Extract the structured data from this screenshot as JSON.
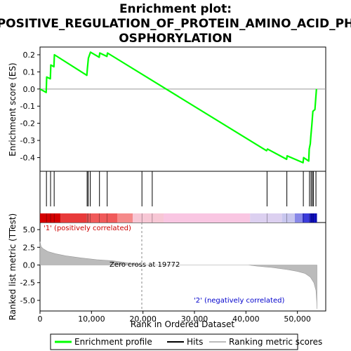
{
  "chart_data": {
    "type": "line",
    "title_lines": [
      "Enrichment plot:",
      "POSITIVE_REGULATION_OF_PROTEIN_AMINO_ACID_PH",
      "OSPHORYLATION"
    ],
    "xlabel": "Rank in Ordered Dataset",
    "ylabel_top": "Enrichment score (ES)",
    "ylabel_bottom": "Ranked list metric (TTest)",
    "xlim": [
      0,
      55500
    ],
    "x_ticks": [
      0,
      10000,
      20000,
      30000,
      40000,
      50000
    ],
    "x_tick_labels": [
      "0",
      "10,000",
      "20,000",
      "30,000",
      "40,000",
      "50,000"
    ],
    "es_ylim": [
      -0.48,
      0.245
    ],
    "es_ticks": [
      0.2,
      0.1,
      0.0,
      -0.1,
      -0.2,
      -0.3,
      -0.4
    ],
    "es_tick_labels": [
      "0.2",
      "0.1",
      "0.0",
      "-0.1",
      "-0.2",
      "-0.3",
      "-0.4"
    ],
    "metric_ylim": [
      -6.5,
      6.0
    ],
    "metric_ticks": [
      5.0,
      2.5,
      0.0,
      -2.5,
      -5.0
    ],
    "metric_tick_labels": [
      "5.0",
      "2.5",
      "0.0",
      "-2.5",
      "-5.0"
    ],
    "enrichment_profile": [
      [
        0,
        0.0
      ],
      [
        1200,
        -0.02
      ],
      [
        1300,
        0.07
      ],
      [
        2000,
        0.06
      ],
      [
        2100,
        0.14
      ],
      [
        2700,
        0.13
      ],
      [
        2800,
        0.2
      ],
      [
        9100,
        0.08
      ],
      [
        9200,
        0.12
      ],
      [
        9400,
        0.18
      ],
      [
        9800,
        0.215
      ],
      [
        11500,
        0.185
      ],
      [
        11600,
        0.21
      ],
      [
        13000,
        0.19
      ],
      [
        13100,
        0.21
      ],
      [
        44000,
        -0.36
      ],
      [
        44200,
        -0.35
      ],
      [
        47900,
        -0.41
      ],
      [
        48000,
        -0.39
      ],
      [
        51100,
        -0.43
      ],
      [
        51200,
        -0.4
      ],
      [
        52200,
        -0.42
      ],
      [
        52300,
        -0.35
      ],
      [
        52500,
        -0.32
      ],
      [
        52600,
        -0.28
      ],
      [
        52800,
        -0.21
      ],
      [
        53000,
        -0.13
      ],
      [
        53400,
        -0.12
      ],
      [
        53700,
        0.0
      ]
    ],
    "hits": [
      1250,
      2050,
      2750,
      9150,
      9350,
      9750,
      11550,
      13050,
      19800,
      21800,
      44100,
      47950,
      51150,
      52350,
      52650,
      52900,
      53100,
      53600
    ],
    "metric_curve": [
      [
        0,
        3.3
      ],
      [
        200,
        2.6
      ],
      [
        600,
        2.3
      ],
      [
        1500,
        1.9
      ],
      [
        3000,
        1.6
      ],
      [
        5000,
        1.3
      ],
      [
        8000,
        1.0
      ],
      [
        11000,
        0.75
      ],
      [
        14000,
        0.6
      ],
      [
        16000,
        0.4
      ],
      [
        18000,
        0.2
      ],
      [
        19772,
        0.0
      ],
      [
        40500,
        0.0
      ],
      [
        42000,
        -0.15
      ],
      [
        45000,
        -0.35
      ],
      [
        48000,
        -0.65
      ],
      [
        50000,
        -0.9
      ],
      [
        51500,
        -1.2
      ],
      [
        52500,
        -1.7
      ],
      [
        53200,
        -2.5
      ],
      [
        53600,
        -3.6
      ],
      [
        53750,
        -5.2
      ],
      [
        53800,
        -6.2
      ]
    ],
    "zero_cross_rank": 19772,
    "zero_cross_text": "Zero cross at 19772",
    "pos_label": "'1' (positively correlated)",
    "neg_label": "'2' (negatively correlated)",
    "legend": [
      "Enrichment profile",
      "Hits",
      "Ranking metric scores"
    ],
    "colors": {
      "profile": "#00ff00",
      "pos_label": "#cc0000",
      "neg_label": "#0000cc",
      "metric_fill": "#bbbbbb"
    }
  }
}
